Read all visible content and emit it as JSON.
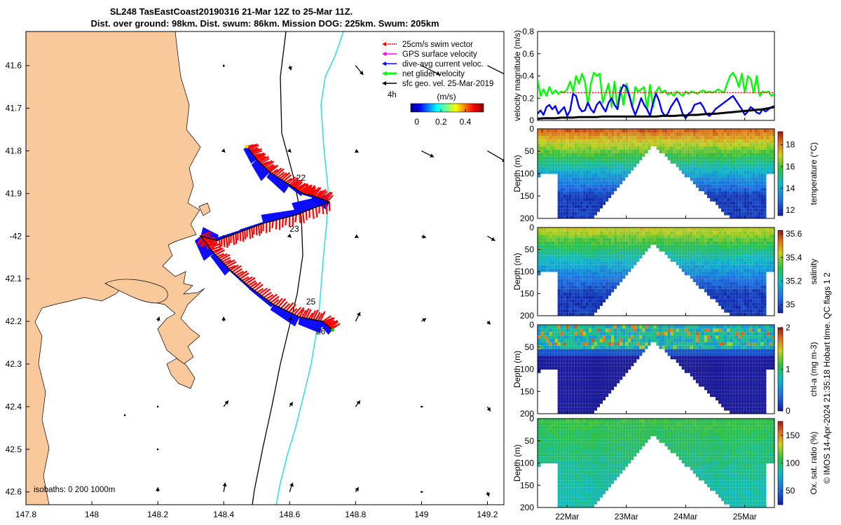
{
  "title_line1": "SL248 TasEastCoast20190316 21-Mar 12Z to 25-Mar 11Z.",
  "title_line2": "Dist. over ground: 98km. Dist. swum: 86km. Mission DOG: 225km. Swum: 205km",
  "colors": {
    "land": "#f9c89b",
    "isobath_200": "#000000",
    "isobath_1000": "#35e0e0",
    "swim": "#ff0000",
    "gps": "#ff00ff",
    "dive_avg": "#0000ff",
    "net": "#00ff00",
    "sfc_geo": "#000000"
  },
  "chart_data": [
    {
      "type": "map",
      "name": "track-map",
      "xlim": [
        147.8,
        149.25
      ],
      "ylim": [
        -42.63,
        -41.52
      ],
      "x_ticks": [
        147.8,
        148,
        148.2,
        148.4,
        148.6,
        148.8,
        149,
        149.2
      ],
      "x_tick_labels": [
        "147.8",
        "148",
        "148.2",
        "148.4",
        "148.6",
        "148.8",
        "149",
        "149.2"
      ],
      "y_ticks": [
        -41.6,
        -41.7,
        -41.8,
        -41.9,
        -42.0,
        -42.1,
        -42.2,
        -42.3,
        -42.4,
        -42.5,
        -42.6
      ],
      "y_tick_labels": [
        "41.6",
        "41.7",
        "41.8",
        "41.9",
        "-42",
        "42.1",
        "42.2",
        "42.3",
        "42.4",
        "42.5",
        "42.6"
      ],
      "legend": [
        "25cm/s swim vector",
        "GPS surface velocity",
        "dive-avg current veloc.",
        "net glider velocity",
        "sfc geo. vel. 25-Mar-2019"
      ],
      "legend_extra": "4h",
      "colorbar_label": "(m/s)",
      "colorbar_ticks": [
        0,
        0.2,
        0.4
      ],
      "colorbar_tick_labels": [
        "0",
        "0.2",
        "0.4"
      ],
      "colorbar_range": [
        -0.05,
        0.55
      ],
      "isobath_text": "isobaths: 0   200  1000m",
      "track": [
        [
          148.47,
          -41.79
        ],
        [
          148.5,
          -41.82
        ],
        [
          148.54,
          -41.85
        ],
        [
          148.6,
          -41.88
        ],
        [
          148.64,
          -41.9
        ],
        [
          148.67,
          -41.905
        ],
        [
          148.72,
          -41.92
        ],
        [
          148.62,
          -41.95
        ],
        [
          148.52,
          -41.97
        ],
        [
          148.45,
          -41.99
        ],
        [
          148.38,
          -42.01
        ],
        [
          148.33,
          -42.0
        ],
        [
          148.37,
          -42.04
        ],
        [
          148.42,
          -42.08
        ],
        [
          148.48,
          -42.12
        ],
        [
          148.55,
          -42.16
        ],
        [
          148.63,
          -42.19
        ],
        [
          148.7,
          -42.2
        ],
        [
          148.73,
          -42.22
        ]
      ],
      "day_labels": [
        {
          "text": "22",
          "lon": 148.62,
          "lat": -41.87
        },
        {
          "text": "23",
          "lon": 148.6,
          "lat": -41.99
        },
        {
          "text": "25",
          "lon": 148.65,
          "lat": -42.16
        },
        {
          "text": "26",
          "lon": 148.68,
          "lat": -42.23
        }
      ],
      "geo_vectors": [
        {
          "lon": 148.4,
          "lat": -41.6,
          "u": 0.0,
          "v": -0.01
        },
        {
          "lon": 148.6,
          "lat": -41.6,
          "u": 0.01,
          "v": -0.03
        },
        {
          "lon": 148.8,
          "lat": -41.6,
          "u": 0.05,
          "v": -0.06
        },
        {
          "lon": 149.0,
          "lat": -41.6,
          "u": 0.12,
          "v": -0.06
        },
        {
          "lon": 149.2,
          "lat": -41.6,
          "u": 0.14,
          "v": -0.07
        },
        {
          "lon": 148.4,
          "lat": -41.8,
          "u": 0.01,
          "v": -0.01
        },
        {
          "lon": 148.6,
          "lat": -41.8,
          "u": 0.01,
          "v": -0.01
        },
        {
          "lon": 148.8,
          "lat": -41.8,
          "u": 0.02,
          "v": -0.01
        },
        {
          "lon": 149.0,
          "lat": -41.8,
          "u": 0.08,
          "v": -0.04
        },
        {
          "lon": 149.2,
          "lat": -41.8,
          "u": 0.12,
          "v": -0.07
        },
        {
          "lon": 148.4,
          "lat": -42.0,
          "u": 0.0,
          "v": 0.0
        },
        {
          "lon": 148.6,
          "lat": -42.0,
          "u": 0.01,
          "v": -0.01
        },
        {
          "lon": 148.8,
          "lat": -42.0,
          "u": 0.02,
          "v": -0.01
        },
        {
          "lon": 149.0,
          "lat": -42.0,
          "u": 0.03,
          "v": -0.01
        },
        {
          "lon": 149.2,
          "lat": -42.0,
          "u": 0.05,
          "v": -0.03
        },
        {
          "lon": 148.2,
          "lat": -42.2,
          "u": 0.01,
          "v": 0.03
        },
        {
          "lon": 148.4,
          "lat": -42.2,
          "u": 0.0,
          "v": 0.03
        },
        {
          "lon": 148.6,
          "lat": -42.2,
          "u": 0.01,
          "v": 0.03
        },
        {
          "lon": 148.8,
          "lat": -42.2,
          "u": 0.03,
          "v": 0.06
        },
        {
          "lon": 149.0,
          "lat": -42.2,
          "u": 0.03,
          "v": 0.02
        },
        {
          "lon": 149.2,
          "lat": -42.2,
          "u": 0.02,
          "v": -0.02
        },
        {
          "lon": 148.2,
          "lat": -42.4,
          "u": 0.0,
          "v": 0.0
        },
        {
          "lon": 148.4,
          "lat": -42.4,
          "u": 0.03,
          "v": 0.04
        },
        {
          "lon": 148.6,
          "lat": -42.4,
          "u": 0.02,
          "v": 0.03
        },
        {
          "lon": 148.8,
          "lat": -42.4,
          "u": 0.03,
          "v": 0.04
        },
        {
          "lon": 149.0,
          "lat": -42.4,
          "u": 0.01,
          "v": 0.0
        },
        {
          "lon": 149.2,
          "lat": -42.4,
          "u": 0.02,
          "v": -0.03
        },
        {
          "lon": 148.4,
          "lat": -42.6,
          "u": 0.01,
          "v": 0.06
        },
        {
          "lon": 148.6,
          "lat": -42.6,
          "u": 0.02,
          "v": 0.06
        },
        {
          "lon": 148.8,
          "lat": -42.6,
          "u": 0.02,
          "v": 0.03
        },
        {
          "lon": 149.0,
          "lat": -42.6,
          "u": 0.01,
          "v": 0.0
        },
        {
          "lon": 149.2,
          "lat": -42.6,
          "u": 0.01,
          "v": -0.03
        },
        {
          "lon": 148.2,
          "lat": -42.6,
          "u": 0.0,
          "v": 0.03
        },
        {
          "lon": 148.2,
          "lat": -42.5,
          "u": 0.0,
          "v": 0.0
        },
        {
          "lon": 148.1,
          "lat": -42.42,
          "u": 0.0,
          "v": 0.0
        }
      ]
    },
    {
      "type": "line",
      "name": "velocity-magnitude",
      "ylabel": "velocity magnitude (m/s)",
      "ylim": [
        0,
        0.8
      ],
      "y_ticks": [
        0,
        0.2,
        0.4,
        0.6,
        0.8
      ],
      "y_tick_labels": [
        "0",
        "0.2",
        "0.4",
        "0.6",
        "0.8"
      ],
      "series": [
        {
          "name": "net glider velocity",
          "color": "#00ff00",
          "x": [
            0,
            0.05,
            0.1,
            0.15,
            0.2,
            0.25,
            0.3,
            0.35,
            0.4,
            0.45,
            0.5,
            0.55,
            0.6,
            0.65,
            0.7,
            0.75,
            0.8,
            0.85,
            0.9,
            0.95,
            1.0,
            1.05,
            1.1,
            1.15,
            1.2,
            1.25,
            1.3,
            1.35,
            1.4,
            1.45,
            1.5,
            1.55,
            1.6,
            1.65,
            1.7,
            1.75,
            1.8,
            1.85,
            1.9,
            1.95,
            2.0,
            2.05,
            2.1,
            2.15,
            2.2,
            2.25,
            2.3,
            2.35,
            2.4,
            2.45,
            2.5,
            2.55,
            2.6,
            2.65,
            2.7,
            2.75,
            2.8,
            2.85,
            2.9,
            2.95,
            3.0,
            3.05,
            3.1,
            3.15,
            3.2,
            3.25,
            3.3,
            3.35,
            3.4,
            3.45,
            3.5,
            3.55,
            3.6,
            3.65,
            3.7,
            3.75,
            3.8,
            3.85,
            3.9,
            3.95,
            4.0
          ],
          "values": [
            0.37,
            0.22,
            0.28,
            0.22,
            0.3,
            0.24,
            0.27,
            0.24,
            0.26,
            0.25,
            0.28,
            0.35,
            0.26,
            0.4,
            0.33,
            0.42,
            0.35,
            0.14,
            0.33,
            0.43,
            0.4,
            0.42,
            0.16,
            0.25,
            0.33,
            0.12,
            0.35,
            0.1,
            0.3,
            0.14,
            0.33,
            0.24,
            0.12,
            0.3,
            0.26,
            0.28,
            0.3,
            0.1,
            0.32,
            0.12,
            0.26,
            0.3,
            0.25,
            0.27,
            0.23,
            0.25,
            0.22,
            0.26,
            0.24,
            0.22,
            0.26,
            0.24,
            0.26,
            0.25,
            0.24,
            0.26,
            0.27,
            0.25,
            0.26,
            0.25,
            0.26,
            0.28,
            0.26,
            0.25,
            0.33,
            0.4,
            0.43,
            0.38,
            0.3,
            0.42,
            0.25,
            0.4,
            0.37,
            0.25,
            0.4,
            0.22,
            0.26,
            0.25,
            0.26,
            0.22,
            0.24
          ]
        },
        {
          "name": "dive-avg current veloc.",
          "color": "#0000ff",
          "x": [
            0,
            0.05,
            0.1,
            0.15,
            0.2,
            0.25,
            0.3,
            0.35,
            0.4,
            0.45,
            0.5,
            0.55,
            0.6,
            0.65,
            0.7,
            0.75,
            0.8,
            0.85,
            0.9,
            0.95,
            1.0,
            1.05,
            1.1,
            1.15,
            1.2,
            1.25,
            1.3,
            1.35,
            1.4,
            1.45,
            1.5,
            1.55,
            1.6,
            1.65,
            1.7,
            1.75,
            1.8,
            1.85,
            1.9,
            1.95,
            2.0,
            2.05,
            2.1,
            2.15,
            2.2,
            2.25,
            2.3,
            2.35,
            2.4,
            2.45,
            2.5,
            2.55,
            2.6,
            2.65,
            2.7,
            2.75,
            2.8,
            2.85,
            2.9,
            2.95,
            3.0,
            3.05,
            3.1,
            3.15,
            3.2,
            3.25,
            3.3,
            3.35,
            3.4,
            3.45,
            3.5,
            3.55,
            3.6,
            3.65,
            3.7,
            3.75,
            3.8,
            3.85,
            3.9,
            3.95,
            4.0
          ],
          "values": [
            0.06,
            0.09,
            0.05,
            0.12,
            0.14,
            0.1,
            0.13,
            0.06,
            0.09,
            0.12,
            0.04,
            0.09,
            0.24,
            0.22,
            0.12,
            0.08,
            0.09,
            0.16,
            0.1,
            0.07,
            0.14,
            0.17,
            0.12,
            0.08,
            0.16,
            0.2,
            0.14,
            0.1,
            0.26,
            0.32,
            0.3,
            0.22,
            0.12,
            0.05,
            0.12,
            0.2,
            0.14,
            0.1,
            0.04,
            0.16,
            0.24,
            0.18,
            0.08,
            0.04,
            0.06,
            0.12,
            0.16,
            0.2,
            0.14,
            0.06,
            0.02,
            0.06,
            0.08,
            0.14,
            0.15,
            0.16,
            0.12,
            0.06,
            0.04,
            0.06,
            0.1,
            0.12,
            0.14,
            0.16,
            0.18,
            0.2,
            0.22,
            0.18,
            0.14,
            0.1,
            0.05,
            0.08,
            0.12,
            0.1,
            0.07,
            0.06,
            0.1,
            0.08,
            0.1,
            0.12,
            0.13
          ]
        },
        {
          "name": "sfc geo. vel.",
          "color": "#000000",
          "x": [
            0,
            0.1,
            0.2,
            0.3,
            0.4,
            0.5,
            0.6,
            0.7,
            0.8,
            0.9,
            1.0,
            1.1,
            1.2,
            1.3,
            1.4,
            1.5,
            1.6,
            1.7,
            1.8,
            1.9,
            2.0,
            2.1,
            2.2,
            2.3,
            2.4,
            2.5,
            2.6,
            2.7,
            2.8,
            2.9,
            3.0,
            3.1,
            3.2,
            3.3,
            3.4,
            3.5,
            3.6,
            3.7,
            3.8,
            3.9,
            4.0
          ],
          "values": [
            0.015,
            0.02,
            0.02,
            0.02,
            0.025,
            0.025,
            0.025,
            0.03,
            0.03,
            0.03,
            0.03,
            0.035,
            0.035,
            0.035,
            0.035,
            0.035,
            0.035,
            0.035,
            0.035,
            0.035,
            0.035,
            0.04,
            0.04,
            0.04,
            0.045,
            0.045,
            0.05,
            0.05,
            0.055,
            0.06,
            0.06,
            0.065,
            0.07,
            0.075,
            0.08,
            0.085,
            0.09,
            0.095,
            0.1,
            0.11,
            0.12
          ]
        },
        {
          "name": "25cm/s swim vector",
          "color": "#ff0000",
          "x": [
            0.4,
            4.0
          ],
          "values": [
            0.25,
            0.25
          ]
        }
      ]
    },
    {
      "type": "heatmap",
      "name": "temperature-section",
      "ylabel": "Depth (m)",
      "colorbar_label": "temperature (°C)",
      "colorbar_range": [
        11.5,
        19.2
      ],
      "colorbar_ticks": [
        12,
        14,
        16,
        18
      ],
      "colorbar_tick_labels": [
        "12",
        "14",
        "16",
        "18"
      ],
      "surface_value": 18.6,
      "deep_value": 12.0,
      "ylim": [
        0,
        200
      ],
      "y_ticks": [
        0,
        50,
        100,
        150,
        200
      ],
      "y_tick_labels": [
        "0",
        "50",
        "100",
        "150",
        "200"
      ]
    },
    {
      "type": "heatmap",
      "name": "salinity-section",
      "ylabel": "Depth (m)",
      "colorbar_label": "salinity",
      "colorbar_range": [
        34.93,
        35.63
      ],
      "colorbar_ticks": [
        35.0,
        35.2,
        35.4,
        35.6
      ],
      "colorbar_tick_labels": [
        "35",
        "35.2",
        "35.4",
        "35.6"
      ],
      "surface_value": 35.45,
      "deep_value": 34.97,
      "ylim": [
        0,
        200
      ],
      "y_ticks": [
        0,
        50,
        100,
        150,
        200
      ],
      "y_tick_labels": [
        "0",
        "50",
        "100",
        "150",
        "200"
      ]
    },
    {
      "type": "heatmap",
      "name": "chlorophyll-section",
      "ylabel": "Depth (m)",
      "colorbar_label": "chl-a (mg m-3)",
      "colorbar_range": [
        0,
        2
      ],
      "colorbar_ticks": [
        0,
        1,
        2
      ],
      "colorbar_tick_labels": [
        "0",
        "1",
        "2"
      ],
      "surface_value": 0.7,
      "deep_value": 0.05,
      "ylim": [
        0,
        200
      ],
      "y_ticks": [
        0,
        50,
        100,
        150,
        200
      ],
      "y_tick_labels": [
        "0",
        "50",
        "100",
        "150",
        "200"
      ]
    },
    {
      "type": "heatmap",
      "name": "oxygen-section",
      "ylabel": "Depth (m)",
      "colorbar_label": "Ox. sat. ratio (%)",
      "colorbar_range": [
        25,
        175
      ],
      "colorbar_ticks": [
        50,
        100,
        150
      ],
      "colorbar_tick_labels": [
        "50",
        "100",
        "150"
      ],
      "surface_value": 108,
      "deep_value": 88,
      "ylim": [
        0,
        200
      ],
      "y_ticks": [
        0,
        50,
        100,
        150,
        200
      ],
      "y_tick_labels": [
        "0",
        "50",
        "100",
        "150",
        "200"
      ]
    }
  ],
  "time_axis": {
    "range_days": [
      0,
      4
    ],
    "ticks": [
      0.5,
      1.5,
      2.5,
      3.5
    ],
    "tick_labels": [
      "22Mar",
      "23Mar",
      "24Mar",
      "25Mar"
    ]
  },
  "side_note": "© IMOS 14-Apr-2024 21:35:18 Hobart time. QC flags 1  2"
}
